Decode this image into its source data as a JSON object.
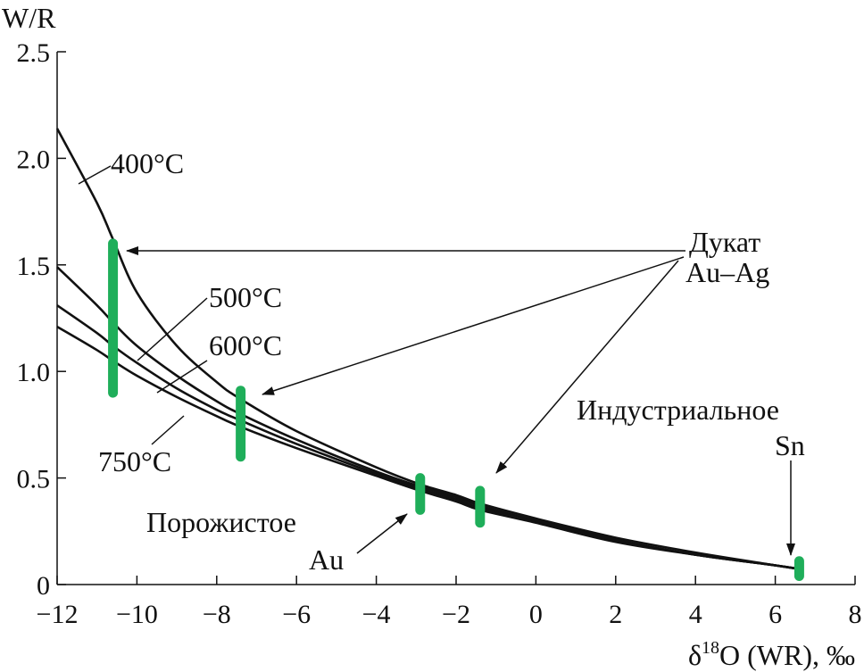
{
  "chart_data": {
    "type": "line",
    "ylabel": "W/R",
    "xlabel_parts": {
      "pre": "δ",
      "sup": "18",
      "post": "O (WR), ‰"
    },
    "xlim": [
      -12,
      8
    ],
    "ylim": [
      0,
      2.5
    ],
    "x_ticks": [
      -12,
      -10,
      -8,
      -6,
      -4,
      -2,
      0,
      2,
      4,
      6,
      8
    ],
    "x_tick_labels": [
      "−12",
      "−10",
      "−8",
      "−6",
      "−4",
      "−2",
      "0",
      "2",
      "4",
      "6",
      "8"
    ],
    "y_ticks": [
      0,
      0.5,
      1.0,
      1.5,
      2.0,
      2.5
    ],
    "y_tick_labels": [
      "0",
      "0.5",
      "1.0",
      "1.5",
      "2.0",
      "2.5"
    ],
    "colors": {
      "curve": "#111111",
      "range_bar": "#1fae5a"
    },
    "series": [
      {
        "name": "400°C",
        "x": [
          -12,
          -11,
          -10.6,
          -10,
          -9,
          -8,
          -7.4,
          -6,
          -4,
          -2.9,
          -2,
          -1.4,
          0,
          2,
          4,
          6,
          6.7
        ],
        "y": [
          2.14,
          1.79,
          1.62,
          1.37,
          1.12,
          0.95,
          0.87,
          0.72,
          0.55,
          0.47,
          0.42,
          0.38,
          0.31,
          0.22,
          0.15,
          0.09,
          0.07
        ]
      },
      {
        "name": "500°C",
        "x": [
          -12,
          -11,
          -10.6,
          -10,
          -9,
          -8,
          -7.4,
          -6,
          -4,
          -2.9,
          -2,
          -1.4,
          0,
          2,
          4,
          6,
          6.7
        ],
        "y": [
          1.49,
          1.31,
          1.23,
          1.12,
          0.98,
          0.86,
          0.8,
          0.68,
          0.53,
          0.46,
          0.41,
          0.37,
          0.3,
          0.21,
          0.14,
          0.09,
          0.07
        ]
      },
      {
        "name": "600°C",
        "x": [
          -12,
          -11,
          -10.6,
          -10,
          -9,
          -8,
          -7.4,
          -6,
          -4,
          -2.9,
          -2,
          -1.4,
          0,
          2,
          4,
          6,
          6.7
        ],
        "y": [
          1.31,
          1.18,
          1.12,
          1.04,
          0.92,
          0.82,
          0.77,
          0.66,
          0.52,
          0.45,
          0.4,
          0.36,
          0.3,
          0.21,
          0.14,
          0.09,
          0.07
        ]
      },
      {
        "name": "750°C",
        "x": [
          -12,
          -11,
          -10.6,
          -10,
          -9,
          -8,
          -7.4,
          -6,
          -4,
          -2.9,
          -2,
          -1.4,
          0,
          2,
          4,
          6,
          6.7
        ],
        "y": [
          1.21,
          1.1,
          1.05,
          0.98,
          0.88,
          0.79,
          0.74,
          0.64,
          0.51,
          0.44,
          0.39,
          0.35,
          0.29,
          0.2,
          0.14,
          0.09,
          0.07
        ]
      }
    ],
    "ranges": [
      {
        "deposit": "Дукат Au–Ag",
        "x": -10.6,
        "y_min": 0.9,
        "y_max": 1.6
      },
      {
        "deposit": "Дукат Au–Ag",
        "x": -7.4,
        "y_min": 0.6,
        "y_max": 0.91
      },
      {
        "deposit": "Порожистое Au",
        "x": -2.9,
        "y_min": 0.35,
        "y_max": 0.5
      },
      {
        "deposit": "Дукат Au–Ag",
        "x": -1.4,
        "y_min": 0.29,
        "y_max": 0.44
      },
      {
        "deposit": "Индустриальное Sn",
        "x": 6.6,
        "y_min": 0.04,
        "y_max": 0.11
      }
    ],
    "annotations": {
      "dukat_1": "Дукат",
      "dukat_2": "Au–Ag",
      "porozh_1": "Порожистое",
      "porozh_2": "Au",
      "indust_1": "Индустриальное",
      "indust_2": "Sn"
    }
  }
}
